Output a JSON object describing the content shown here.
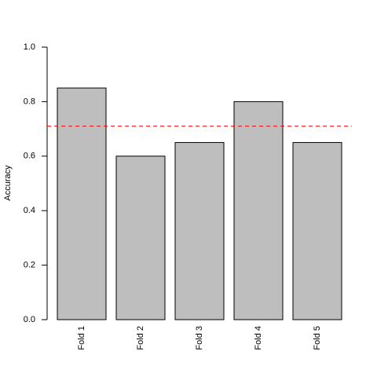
{
  "chart_data": {
    "type": "bar",
    "y_label": "Accuracy",
    "categories": [
      "Fold 1",
      "Fold 2",
      "Fold 3",
      "Fold 4",
      "Fold 5"
    ],
    "values": [
      0.85,
      0.6,
      0.65,
      0.8,
      0.65
    ],
    "color": "#bebebe",
    "ylim": [
      0,
      1
    ],
    "yticks": [
      {
        "value": 0,
        "label": "0.0"
      },
      0.2,
      0.4,
      0.6,
      0.8,
      {
        "value": 1,
        "label": "1.0"
      }
    ],
    "reference_line": {
      "value": 0.71,
      "color": "#ff0000"
    }
  }
}
